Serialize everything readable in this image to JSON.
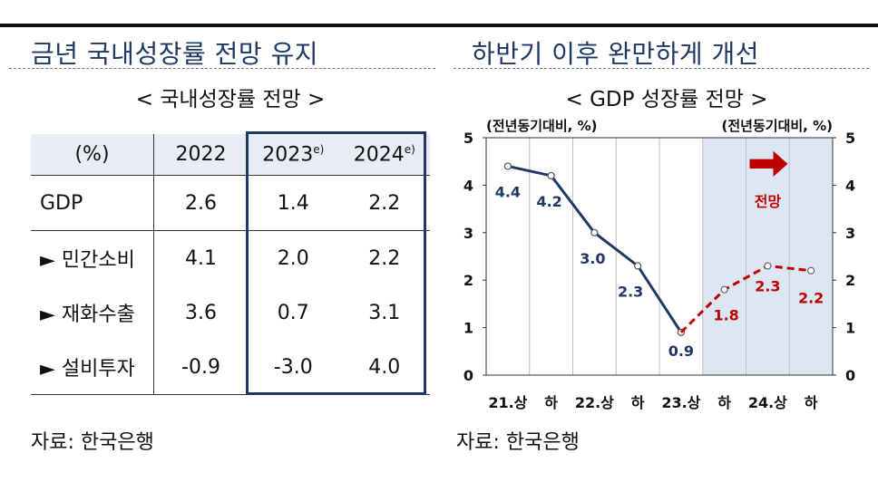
{
  "left": {
    "title": "금년 국내성장률 전망 유지",
    "subtitle": "< 국내성장률 전망 >",
    "table": {
      "header": [
        "(%)",
        "2022",
        "2023",
        "2024"
      ],
      "header_sup": [
        "",
        "",
        "e)",
        "e)"
      ],
      "rows": [
        {
          "label": "GDP",
          "cells": [
            "2.6",
            "1.4",
            "2.2"
          ]
        },
        {
          "label": "► 민간소비",
          "cells": [
            "4.1",
            "2.0",
            "2.2"
          ]
        },
        {
          "label": "► 재화수출",
          "cells": [
            "3.6",
            "0.7",
            "3.1"
          ]
        },
        {
          "label": "► 설비투자",
          "cells": [
            "-0.9",
            "-3.0",
            "4.0"
          ]
        }
      ]
    },
    "source": "자료: 한국은행"
  },
  "right": {
    "title": "하반기 이후 완만하게 개선",
    "subtitle": "< GDP 성장률 전망 >",
    "source": "자료: 한국은행"
  },
  "chart_data": {
    "type": "line",
    "unit_left": "(전년동기대비, %)",
    "unit_right": "(전년동기대비, %)",
    "x": [
      "21.상",
      "하",
      "22.상",
      "하",
      "23.상",
      "하",
      "24.상",
      "하"
    ],
    "ylim": [
      0,
      5
    ],
    "yticks": [
      "0",
      "1",
      "2",
      "3",
      "4",
      "5"
    ],
    "forecast_label": "전망",
    "forecast_start_index": 5,
    "series": [
      {
        "values": [
          4.4,
          4.2,
          3.0,
          2.3,
          0.9,
          null,
          null,
          null
        ],
        "labels": [
          "4.4",
          "4.2",
          "3.0",
          "2.3",
          "0.9",
          "",
          "",
          ""
        ],
        "color": "#1f3864",
        "style": "solid"
      },
      {
        "values": [
          null,
          null,
          null,
          null,
          0.9,
          1.8,
          2.3,
          2.2
        ],
        "labels": [
          "",
          "",
          "",
          "",
          "",
          "1.8",
          "2.3",
          "2.2"
        ],
        "color": "#c00000",
        "style": "dashed"
      }
    ],
    "colors": {
      "forecast_bg": "#dde6f3",
      "arrow": "#c00000",
      "grid": "#bfbfbf"
    }
  }
}
